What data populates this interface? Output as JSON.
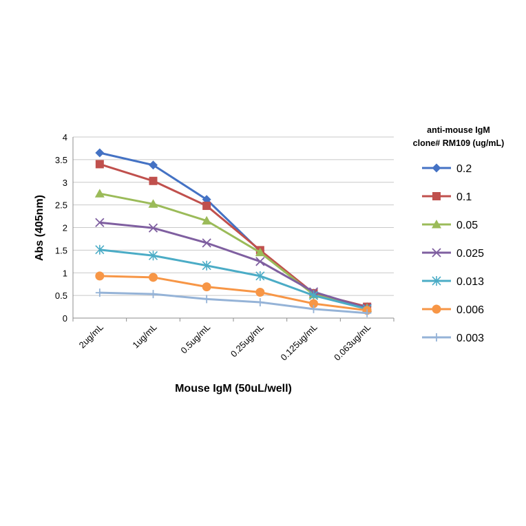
{
  "chart_data": {
    "type": "line",
    "title": "",
    "xlabel": "Mouse IgM (50uL/well)",
    "ylabel": "Abs (405nm)",
    "ylim": [
      0,
      4
    ],
    "yticks": [
      "0",
      "0.5",
      "1",
      "1.5",
      "2",
      "2.5",
      "3",
      "3.5",
      "4"
    ],
    "grid": true,
    "legend_position": "right",
    "legend_title_lines": [
      "anti-mouse IgM",
      "clone# RM109 (ug/mL)"
    ],
    "categories": [
      "2ug/mL",
      "1ug/mL",
      "0.5ug/mL",
      "0.25ug/mL",
      "0.125ug/mL",
      "0.063ug/mL"
    ],
    "series": [
      {
        "name": "0.2",
        "color": "#4472C4",
        "marker": "diamond",
        "values": [
          3.65,
          3.38,
          2.62,
          1.48,
          0.55,
          0.25
        ]
      },
      {
        "name": "0.1",
        "color": "#C0504D",
        "marker": "square",
        "values": [
          3.4,
          3.03,
          2.48,
          1.5,
          0.55,
          0.25
        ]
      },
      {
        "name": "0.05",
        "color": "#9BBB59",
        "marker": "triangle",
        "values": [
          2.75,
          2.52,
          2.15,
          1.45,
          0.52,
          0.22
        ]
      },
      {
        "name": "0.025",
        "color": "#7F5FA0",
        "marker": "x",
        "values": [
          2.11,
          1.99,
          1.66,
          1.25,
          0.58,
          0.22
        ]
      },
      {
        "name": "0.013",
        "color": "#4BACC6",
        "marker": "asterisk",
        "values": [
          1.51,
          1.38,
          1.16,
          0.93,
          0.5,
          0.2
        ]
      },
      {
        "name": "0.006",
        "color": "#F79646",
        "marker": "circle",
        "values": [
          0.93,
          0.9,
          0.69,
          0.57,
          0.32,
          0.17
        ]
      },
      {
        "name": "0.003",
        "color": "#95B3D7",
        "marker": "plus",
        "values": [
          0.56,
          0.53,
          0.42,
          0.35,
          0.2,
          0.11
        ]
      }
    ]
  }
}
